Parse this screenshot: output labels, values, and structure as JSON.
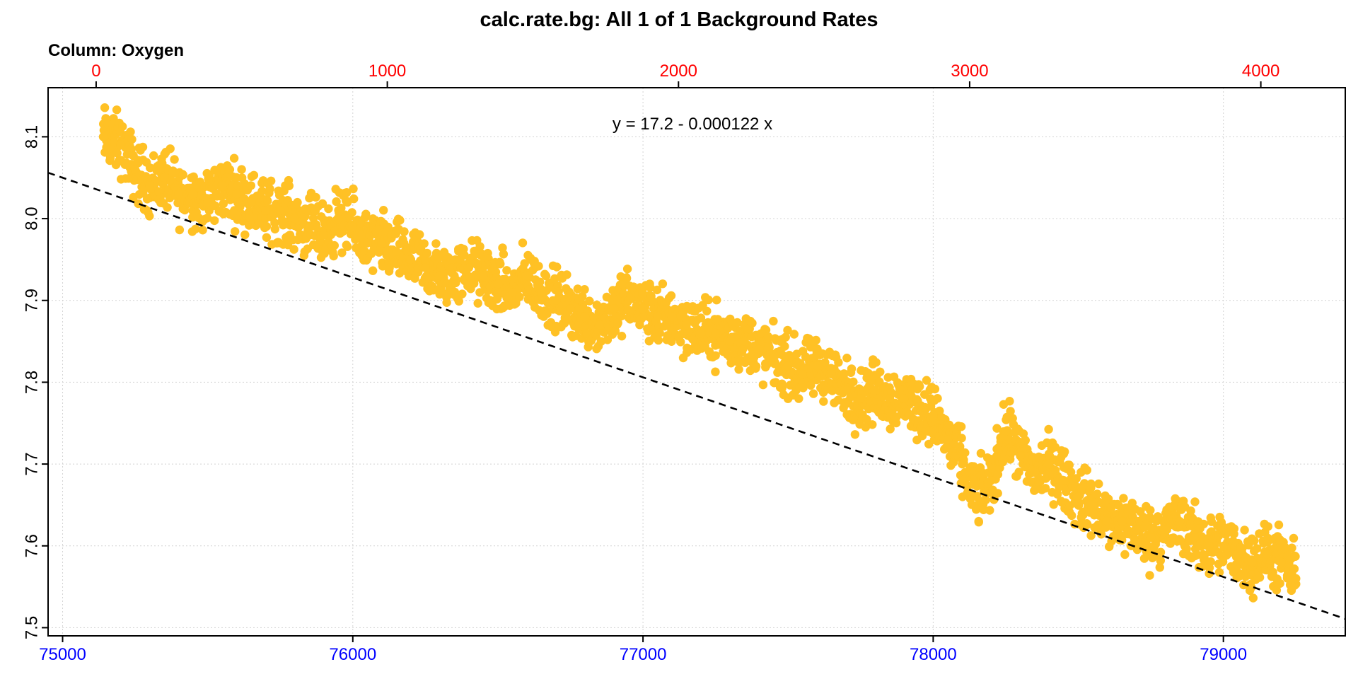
{
  "chart_data": {
    "type": "scatter",
    "title": "calc.rate.bg: All 1 of 1 Background Rates",
    "subtitle": "Column: Oxygen",
    "annotation": "y = 17.2 - 0.000122 x",
    "x_axis": {
      "ticks": [
        75000,
        76000,
        77000,
        78000,
        79000
      ],
      "range": [
        74950,
        79420
      ],
      "color": "#0000ff"
    },
    "top_axis": {
      "ticks": [
        0,
        1000,
        2000,
        3000,
        4000
      ],
      "range": [
        -165,
        4290
      ],
      "color": "#ff0000"
    },
    "y_axis": {
      "ticks": [
        7.5,
        7.6,
        7.7,
        7.8,
        7.9,
        8.0,
        8.1
      ],
      "range": [
        7.49,
        8.16
      ],
      "color": "#000000"
    },
    "grid": true,
    "point_color": "#ffc125",
    "fit_line": {
      "intercept": 17.2,
      "slope": -0.000122,
      "style": "dashed",
      "color": "#000000"
    },
    "series": [
      {
        "x_range": [
          75140,
          79250
        ],
        "points": [
          [
            75140,
            8.1
          ],
          [
            75200,
            8.09
          ],
          [
            75250,
            8.06
          ],
          [
            75300,
            8.04
          ],
          [
            75350,
            8.05
          ],
          [
            75400,
            8.03
          ],
          [
            75450,
            8.03
          ],
          [
            75500,
            8.02
          ],
          [
            75550,
            8.04
          ],
          [
            75600,
            8.03
          ],
          [
            75650,
            8.02
          ],
          [
            75700,
            8.01
          ],
          [
            75750,
            8.01
          ],
          [
            75800,
            8.0
          ],
          [
            75850,
            7.99
          ],
          [
            75900,
            7.98
          ],
          [
            75950,
            8.0
          ],
          [
            76000,
            7.99
          ],
          [
            76050,
            7.97
          ],
          [
            76100,
            7.97
          ],
          [
            76150,
            7.96
          ],
          [
            76200,
            7.95
          ],
          [
            76250,
            7.94
          ],
          [
            76300,
            7.93
          ],
          [
            76350,
            7.93
          ],
          [
            76400,
            7.94
          ],
          [
            76450,
            7.93
          ],
          [
            76500,
            7.92
          ],
          [
            76550,
            7.91
          ],
          [
            76600,
            7.93
          ],
          [
            76650,
            7.91
          ],
          [
            76700,
            7.9
          ],
          [
            76750,
            7.89
          ],
          [
            76800,
            7.88
          ],
          [
            76850,
            7.87
          ],
          [
            76900,
            7.89
          ],
          [
            76950,
            7.9
          ],
          [
            77000,
            7.89
          ],
          [
            77050,
            7.88
          ],
          [
            77100,
            7.88
          ],
          [
            77150,
            7.87
          ],
          [
            77200,
            7.86
          ],
          [
            77250,
            7.86
          ],
          [
            77300,
            7.85
          ],
          [
            77350,
            7.85
          ],
          [
            77400,
            7.84
          ],
          [
            77450,
            7.83
          ],
          [
            77500,
            7.82
          ],
          [
            77550,
            7.81
          ],
          [
            77600,
            7.82
          ],
          [
            77650,
            7.81
          ],
          [
            77700,
            7.79
          ],
          [
            77750,
            7.78
          ],
          [
            77800,
            7.79
          ],
          [
            77850,
            7.78
          ],
          [
            77900,
            7.78
          ],
          [
            77950,
            7.77
          ],
          [
            78000,
            7.76
          ],
          [
            78050,
            7.73
          ],
          [
            78100,
            7.7
          ],
          [
            78150,
            7.66
          ],
          [
            78200,
            7.68
          ],
          [
            78250,
            7.74
          ],
          [
            78300,
            7.71
          ],
          [
            78350,
            7.69
          ],
          [
            78400,
            7.7
          ],
          [
            78450,
            7.68
          ],
          [
            78500,
            7.66
          ],
          [
            78550,
            7.65
          ],
          [
            78600,
            7.63
          ],
          [
            78650,
            7.63
          ],
          [
            78700,
            7.62
          ],
          [
            78750,
            7.61
          ],
          [
            78800,
            7.62
          ],
          [
            78850,
            7.63
          ],
          [
            78900,
            7.61
          ],
          [
            78950,
            7.6
          ],
          [
            79000,
            7.6
          ],
          [
            79050,
            7.59
          ],
          [
            79100,
            7.58
          ],
          [
            79150,
            7.59
          ],
          [
            79200,
            7.58
          ],
          [
            79250,
            7.56
          ]
        ]
      }
    ]
  }
}
